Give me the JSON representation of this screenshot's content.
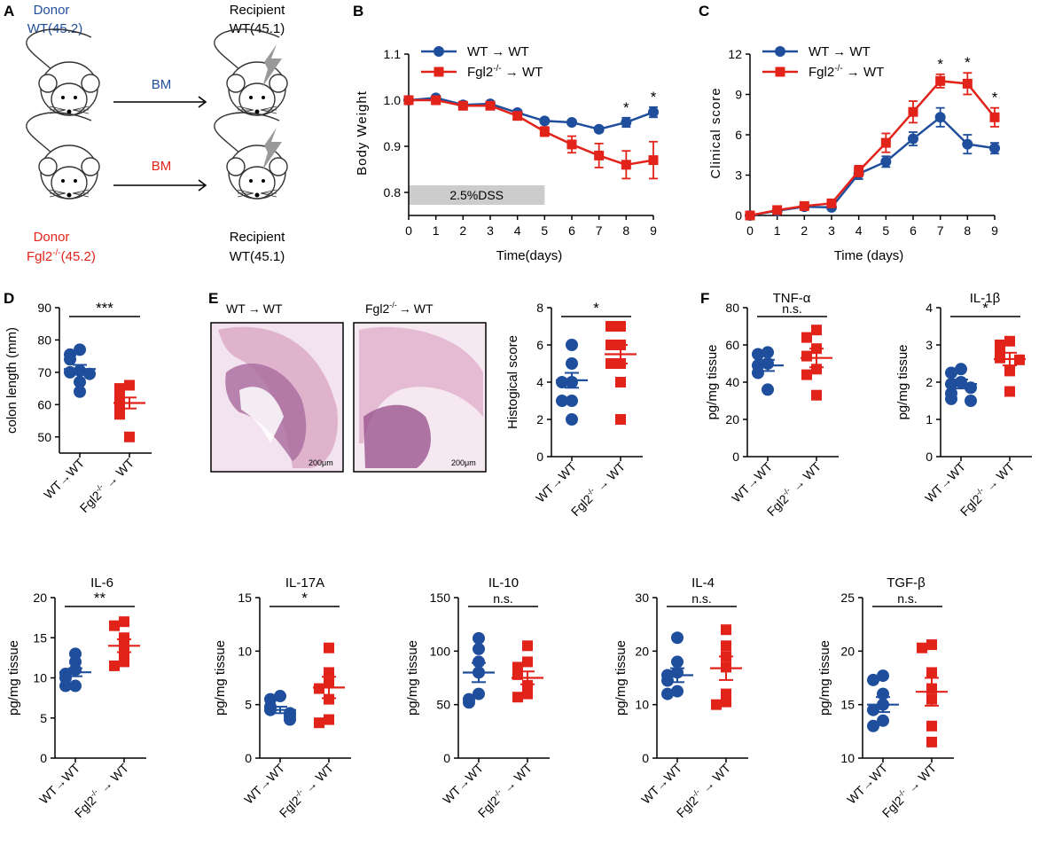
{
  "colors": {
    "wt": "#1f4e9c",
    "ko": "#e2231a",
    "axis": "#000000",
    "dss": "#cccccc",
    "histo": "#d9a6c2"
  },
  "panel_letters": {
    "A": "A",
    "B": "B",
    "C": "C",
    "D": "D",
    "E": "E",
    "F": "F"
  },
  "panel_a": {
    "donor_top_1": "Donor",
    "donor_top_2": "WT(45.2)",
    "recipient_top_1": "Recipient",
    "recipient_top_2": "WT(45.1)",
    "bm_top": "BM",
    "bm_bottom": "BM",
    "donor_bottom_1": "Donor",
    "donor_bottom_2": "Fgl2",
    "donor_bottom_sup": "-/-",
    "donor_bottom_3": "(45.2)",
    "recipient_bottom_1": "Recipient",
    "recipient_bottom_2": "WT(45.1)"
  },
  "legend": {
    "wt_label": "WT",
    "ko_label": "Fgl2",
    "ko_sup": "-/-",
    "arrow": "→",
    "to": "WT"
  },
  "panel_e": {
    "title_wt": "WT",
    "title_ko": "Fgl2",
    "ko_sup": "-/-",
    "arrow": "→",
    "to": "WT",
    "scale_bar": "200μm"
  },
  "xgroups": {
    "wt": "WT→WT",
    "ko": "Fgl2",
    "ko_sup": "-/-",
    "ko_tail": " → WT"
  },
  "chart_data": [
    {
      "id": "B",
      "type": "line",
      "title": "",
      "xlabel": "Time(days)",
      "ylabel": "Body Weight",
      "xlim": [
        0,
        9
      ],
      "ylim": [
        0.75,
        1.1
      ],
      "xticks": [
        0,
        1,
        2,
        3,
        4,
        5,
        6,
        7,
        8,
        9
      ],
      "yticks": [
        "0.8",
        "0.9",
        "1.0",
        "1.1"
      ],
      "annotation": "2.5%DSS",
      "dss_range": [
        0,
        5
      ],
      "series": [
        {
          "name": "WT → WT",
          "x": [
            0,
            1,
            2,
            3,
            4,
            5,
            6,
            7,
            8,
            9
          ],
          "values": [
            1.0,
            1.005,
            0.99,
            0.992,
            0.973,
            0.955,
            0.952,
            0.937,
            0.952,
            0.974
          ],
          "err": [
            0.003,
            0.003,
            0.003,
            0.003,
            0.004,
            0.004,
            0.004,
            0.006,
            0.01,
            0.011
          ]
        },
        {
          "name": "Fgl2-/- → WT",
          "x": [
            0,
            1,
            2,
            3,
            4,
            5,
            6,
            7,
            8,
            9
          ],
          "values": [
            1.0,
            1.0,
            0.988,
            0.988,
            0.966,
            0.932,
            0.904,
            0.88,
            0.86,
            0.87
          ],
          "err": [
            0.003,
            0.005,
            0.004,
            0.005,
            0.005,
            0.01,
            0.018,
            0.026,
            0.03,
            0.04
          ]
        }
      ],
      "stars": [
        {
          "x": 8,
          "label": "*"
        },
        {
          "x": 9,
          "label": "*"
        }
      ]
    },
    {
      "id": "C",
      "type": "line",
      "title": "",
      "xlabel": "Time (days)",
      "ylabel": "Clinical score",
      "xlim": [
        0,
        9
      ],
      "ylim": [
        0,
        12
      ],
      "xticks": [
        0,
        1,
        2,
        3,
        4,
        5,
        6,
        7,
        8,
        9
      ],
      "yticks": [
        "0",
        "3",
        "6",
        "9",
        "12"
      ],
      "series": [
        {
          "name": "WT → WT",
          "x": [
            0,
            1,
            2,
            3,
            4,
            5,
            6,
            7,
            8,
            9
          ],
          "values": [
            0,
            0.35,
            0.65,
            0.6,
            3.1,
            4.0,
            5.7,
            7.3,
            5.3,
            5.0
          ],
          "err": [
            0.1,
            0.1,
            0.1,
            0.1,
            0.4,
            0.4,
            0.5,
            0.7,
            0.7,
            0.4
          ]
        },
        {
          "name": "Fgl2-/- → WT",
          "x": [
            0,
            1,
            2,
            3,
            4,
            5,
            6,
            7,
            8,
            9
          ],
          "values": [
            0,
            0.4,
            0.7,
            0.9,
            3.3,
            5.4,
            7.7,
            10.0,
            9.8,
            7.3
          ],
          "err": [
            0.1,
            0.1,
            0.1,
            0.1,
            0.4,
            0.7,
            0.8,
            0.5,
            0.8,
            0.7
          ]
        }
      ],
      "stars": [
        {
          "x": 7,
          "label": "*"
        },
        {
          "x": 8,
          "label": "*"
        },
        {
          "x": 9,
          "label": "*"
        }
      ]
    },
    {
      "id": "D",
      "type": "scatter",
      "ylabel": "colon length (mm)",
      "title": "",
      "ylim": [
        45,
        90
      ],
      "yticks": [
        "50",
        "60",
        "70",
        "80",
        "90"
      ],
      "sig": "***",
      "wt": {
        "points": [
          77,
          75.5,
          74,
          70.5,
          70,
          69.5,
          67,
          64
        ],
        "mean": 71,
        "sem": 1.3
      },
      "ko": {
        "points": [
          66,
          65,
          63,
          61,
          60,
          58,
          57,
          50
        ],
        "mean": 60.5,
        "sem": 1.7
      }
    },
    {
      "id": "E",
      "type": "scatter",
      "ylabel": "Histogical score",
      "title": "",
      "ylim": [
        0,
        8
      ],
      "yticks": [
        "0",
        "2",
        "4",
        "6",
        "8"
      ],
      "sig": "*",
      "wt": {
        "points": [
          6,
          5,
          4,
          4,
          3,
          3,
          2
        ],
        "mean": 4.1,
        "sem": 0.4
      },
      "ko": {
        "points": [
          7,
          7,
          6,
          6,
          5,
          5,
          4,
          2
        ],
        "mean": 5.5,
        "sem": 0.5
      }
    },
    {
      "id": "TNF",
      "type": "scatter",
      "ylabel": "pg/mg tissue",
      "title": "TNF-α",
      "ylim": [
        0,
        80
      ],
      "yticks": [
        "0",
        "20",
        "40",
        "60",
        "80"
      ],
      "sig": "n.s.",
      "wt": {
        "points": [
          56,
          55,
          50,
          49,
          45,
          36
        ],
        "mean": 49,
        "sem": 3
      },
      "ko": {
        "points": [
          68,
          64,
          58,
          54,
          47,
          44,
          33
        ],
        "mean": 53,
        "sem": 5
      }
    },
    {
      "id": "IL1B",
      "type": "scatter",
      "ylabel": "pg/mg tissue",
      "title": "IL-1β",
      "ylim": [
        0,
        4
      ],
      "yticks": [
        "0",
        "1",
        "2",
        "3",
        "4"
      ],
      "sig": "*",
      "wt": {
        "points": [
          2.35,
          2.25,
          2.0,
          1.95,
          1.85,
          1.7,
          1.55,
          1.5
        ],
        "mean": 1.95,
        "sem": 0.12
      },
      "ko": {
        "points": [
          3.1,
          3.0,
          2.8,
          2.65,
          2.6,
          2.3,
          1.75
        ],
        "mean": 2.62,
        "sem": 0.17
      }
    },
    {
      "id": "IL6",
      "type": "scatter",
      "ylabel": "pg/mg tissue",
      "title": "IL-6",
      "ylim": [
        0,
        20
      ],
      "yticks": [
        "0",
        "5",
        "10",
        "15",
        "20"
      ],
      "sig": "**",
      "wt": {
        "points": [
          13,
          12,
          11,
          10.5,
          10,
          9,
          9
        ],
        "mean": 10.7,
        "sem": 0.5
      },
      "ko": {
        "points": [
          17,
          16.5,
          15,
          14,
          13,
          12,
          11.5
        ],
        "mean": 14,
        "sem": 0.8
      }
    },
    {
      "id": "IL17A",
      "type": "scatter",
      "ylabel": "pg/mg tissue",
      "title": "IL-17A",
      "ylim": [
        0,
        15
      ],
      "yticks": [
        "0",
        "5",
        "10",
        "15"
      ],
      "sig": "*",
      "wt": {
        "points": [
          5.8,
          5.5,
          4.8,
          4.5,
          4.2,
          3.9,
          3.6
        ],
        "mean": 4.5,
        "sem": 0.3
      },
      "ko": {
        "points": [
          10.3,
          8,
          7,
          6.5,
          5.5,
          3.6,
          3.3
        ],
        "mean": 6.6,
        "sem": 1.0
      }
    },
    {
      "id": "IL10",
      "type": "scatter",
      "ylabel": "pg/mg tissue",
      "title": "IL-10",
      "ylim": [
        0,
        150
      ],
      "yticks": [
        "0",
        "50",
        "100",
        "150"
      ],
      "sig": "n.s.",
      "wt": {
        "points": [
          112,
          102,
          90,
          80,
          60,
          55,
          52
        ],
        "mean": 80,
        "sem": 9
      },
      "ko": {
        "points": [
          105,
          90,
          85,
          78,
          68,
          60,
          57
        ],
        "mean": 75,
        "sem": 6
      }
    },
    {
      "id": "IL4",
      "type": "scatter",
      "ylabel": "pg/mg tissue",
      "title": "IL-4",
      "ylim": [
        0,
        30
      ],
      "yticks": [
        "0",
        "10",
        "20",
        "30"
      ],
      "sig": "n.s.",
      "wt": {
        "points": [
          22.5,
          18,
          16,
          15.5,
          14.5,
          12.5,
          12
        ],
        "mean": 15.5,
        "sem": 1.3
      },
      "ko": {
        "points": [
          24,
          21,
          19,
          17,
          12,
          10.5,
          10
        ],
        "mean": 16.8,
        "sem": 2.2
      }
    },
    {
      "id": "TGFB",
      "type": "scatter",
      "ylabel": "pg/mg tissue",
      "title": "TGF-β",
      "ylim": [
        10,
        25
      ],
      "yticks": [
        "10",
        "15",
        "20",
        "25"
      ],
      "sig": "n.s.",
      "wt": {
        "points": [
          17.7,
          17.3,
          16,
          15,
          14.5,
          13.5,
          13
        ],
        "mean": 15,
        "sem": 0.7
      },
      "ko": {
        "points": [
          20.6,
          20.3,
          18,
          16.5,
          15.5,
          13,
          11.5
        ],
        "mean": 16.2,
        "sem": 1.3
      }
    }
  ]
}
